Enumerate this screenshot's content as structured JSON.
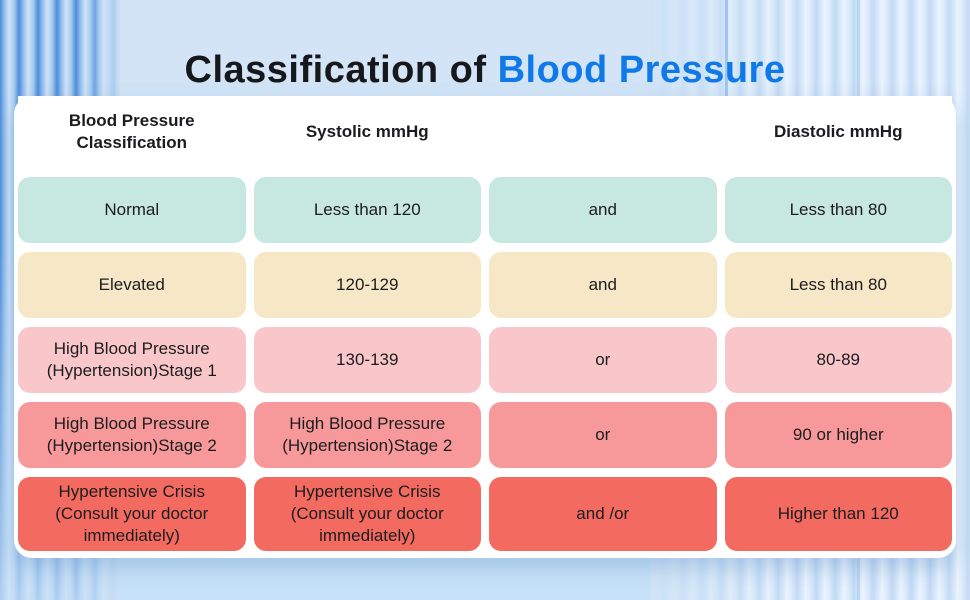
{
  "title": {
    "prefix": "Classification of ",
    "highlight": "Blood Pressure"
  },
  "colors": {
    "title_highlight": "#1079e8",
    "background": "#cde3f7",
    "card": "#ffffff",
    "row_normal": "#c7e7e1",
    "row_elevated": "#f6e8c6",
    "row_stage1": "#f9c7ca",
    "row_stage2": "#f7999a",
    "row_crisis": "#f36a60",
    "text": "#1c1c1e"
  },
  "chart_data": {
    "type": "table",
    "title": "Classification of Blood Pressure",
    "headers": [
      "Blood Pressure Classification",
      "Systolic mmHg",
      "",
      "Diastolic mmHg"
    ],
    "rows": [
      {
        "classification": "Normal",
        "systolic": "Less than 120",
        "connector": "and",
        "diastolic": "Less than 80",
        "color": "#c7e7e1"
      },
      {
        "classification": "Elevated",
        "systolic": "120-129",
        "connector": "and",
        "diastolic": "Less than 80",
        "color": "#f6e8c6"
      },
      {
        "classification": "High Blood Pressure (Hypertension)Stage 1",
        "systolic": "130-139",
        "connector": "or",
        "diastolic": "80-89",
        "color": "#f9c7ca"
      },
      {
        "classification": "High Blood Pressure (Hypertension)Stage 2",
        "systolic": "High Blood Pressure (Hypertension)Stage 2",
        "connector": "or",
        "diastolic": "90 or higher",
        "color": "#f7999a"
      },
      {
        "classification": "Hypertensive Crisis (Consult your doctor immediately)",
        "systolic": "Hypertensive Crisis (Consult your doctor immediately)",
        "connector": "and /or",
        "diastolic": "Higher than 120",
        "color": "#f36a60"
      }
    ]
  }
}
